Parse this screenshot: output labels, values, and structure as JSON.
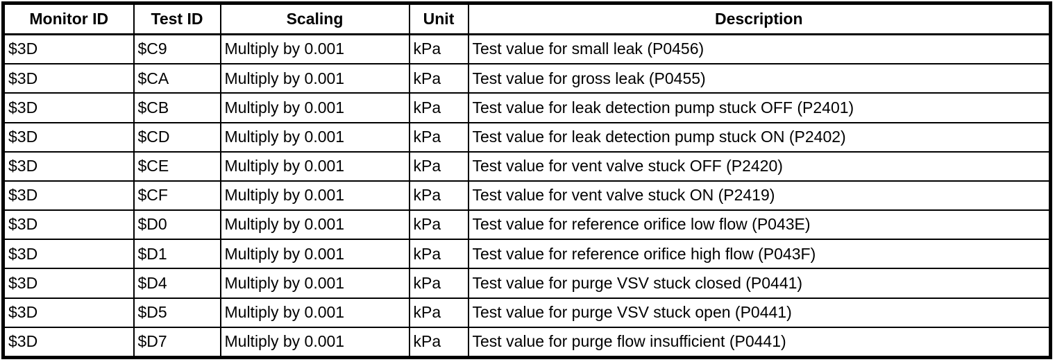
{
  "table": {
    "headers": [
      "Monitor ID",
      "Test ID",
      "Scaling",
      "Unit",
      "Description"
    ],
    "rows": [
      [
        "$3D",
        "$C9",
        "Multiply by 0.001",
        "kPa",
        "Test value for small leak (P0456)"
      ],
      [
        "$3D",
        "$CA",
        "Multiply by 0.001",
        "kPa",
        "Test value for gross leak (P0455)"
      ],
      [
        "$3D",
        "$CB",
        "Multiply by 0.001",
        "kPa",
        "Test value for leak detection pump stuck OFF (P2401)"
      ],
      [
        "$3D",
        "$CD",
        "Multiply by 0.001",
        "kPa",
        "Test value for leak detection pump stuck ON (P2402)"
      ],
      [
        "$3D",
        "$CE",
        "Multiply by 0.001",
        "kPa",
        "Test value for vent valve stuck OFF (P2420)"
      ],
      [
        "$3D",
        "$CF",
        "Multiply by 0.001",
        "kPa",
        "Test value for vent valve stuck ON (P2419)"
      ],
      [
        "$3D",
        "$D0",
        "Multiply by 0.001",
        "kPa",
        "Test value for reference orifice low flow (P043E)"
      ],
      [
        "$3D",
        "$D1",
        "Multiply by 0.001",
        "kPa",
        "Test value for reference orifice high flow (P043F)"
      ],
      [
        "$3D",
        "$D4",
        "Multiply by 0.001",
        "kPa",
        "Test value for purge VSV stuck closed (P0441)"
      ],
      [
        "$3D",
        "$D5",
        "Multiply by 0.001",
        "kPa",
        "Test value for purge VSV stuck open (P0441)"
      ],
      [
        "$3D",
        "$D7",
        "Multiply by 0.001",
        "kPa",
        "Test value for purge flow insufficient (P0441)"
      ]
    ],
    "colors": {
      "border": "#000000",
      "background": "#ffffff",
      "text": "#000000"
    }
  }
}
